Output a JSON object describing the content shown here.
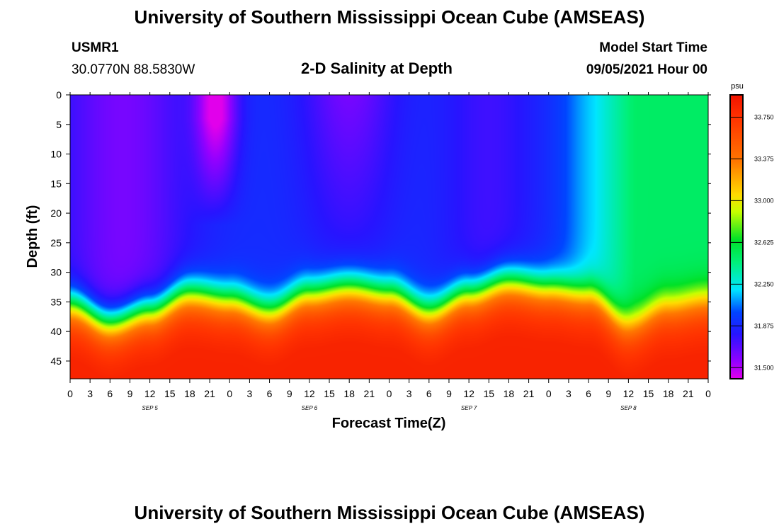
{
  "header": {
    "title_top": "University of Southern Mississippi Ocean Cube (AMSEAS)",
    "title_bottom": "University of Southern Mississippi Ocean Cube (AMSEAS)",
    "station": "USMR1",
    "coords": "30.0770N  88.5830W",
    "plot_title": "2-D Salinity at Depth",
    "start_label": "Model Start Time",
    "start_value": "09/05/2021 Hour 00"
  },
  "chart_data": {
    "type": "heatmap",
    "title": "2-D Salinity at Depth",
    "xlabel": "Forecast Time(Z)",
    "ylabel": "Depth (ft)",
    "x_range_hours": [
      0,
      96
    ],
    "y_range_ft": [
      0,
      48
    ],
    "x_tick_labels": [
      "0",
      "3",
      "6",
      "9",
      "12",
      "15",
      "18",
      "21",
      "0",
      "3",
      "6",
      "9",
      "12",
      "15",
      "18",
      "21",
      "0",
      "3",
      "6",
      "9",
      "12",
      "15",
      "18",
      "21",
      "0",
      "3",
      "6",
      "9",
      "12",
      "15",
      "18",
      "21",
      "0"
    ],
    "y_tick_labels": [
      "0",
      "5",
      "10",
      "15",
      "20",
      "25",
      "30",
      "35",
      "40",
      "45"
    ],
    "date_labels": [
      {
        "label": "SEP 5",
        "hour": 12
      },
      {
        "label": "SEP 6",
        "hour": 36
      },
      {
        "label": "SEP 7",
        "hour": 60
      },
      {
        "label": "SEP 8",
        "hour": 84
      }
    ],
    "colorbar": {
      "unit": "psu",
      "min": 31.4,
      "max": 33.95,
      "ticks": [
        "31.500",
        "31.875",
        "32.250",
        "32.625",
        "33.000",
        "33.375",
        "33.750"
      ],
      "tick_values": [
        31.5,
        31.875,
        32.25,
        32.625,
        33.0,
        33.375,
        33.75
      ]
    },
    "halocline_depth_ft": [
      {
        "hour": 0,
        "depth": 33
      },
      {
        "hour": 6,
        "depth": 36
      },
      {
        "hour": 12,
        "depth": 34
      },
      {
        "hour": 18,
        "depth": 31
      },
      {
        "hour": 24,
        "depth": 32
      },
      {
        "hour": 30,
        "depth": 34
      },
      {
        "hour": 36,
        "depth": 31
      },
      {
        "hour": 42,
        "depth": 30
      },
      {
        "hour": 48,
        "depth": 31
      },
      {
        "hour": 54,
        "depth": 34
      },
      {
        "hour": 60,
        "depth": 31
      },
      {
        "hour": 66,
        "depth": 29
      },
      {
        "hour": 72,
        "depth": 30
      },
      {
        "hour": 78,
        "depth": 31
      },
      {
        "hour": 84,
        "depth": 36
      },
      {
        "hour": 90,
        "depth": 33
      },
      {
        "hour": 96,
        "depth": 32
      }
    ]
  }
}
